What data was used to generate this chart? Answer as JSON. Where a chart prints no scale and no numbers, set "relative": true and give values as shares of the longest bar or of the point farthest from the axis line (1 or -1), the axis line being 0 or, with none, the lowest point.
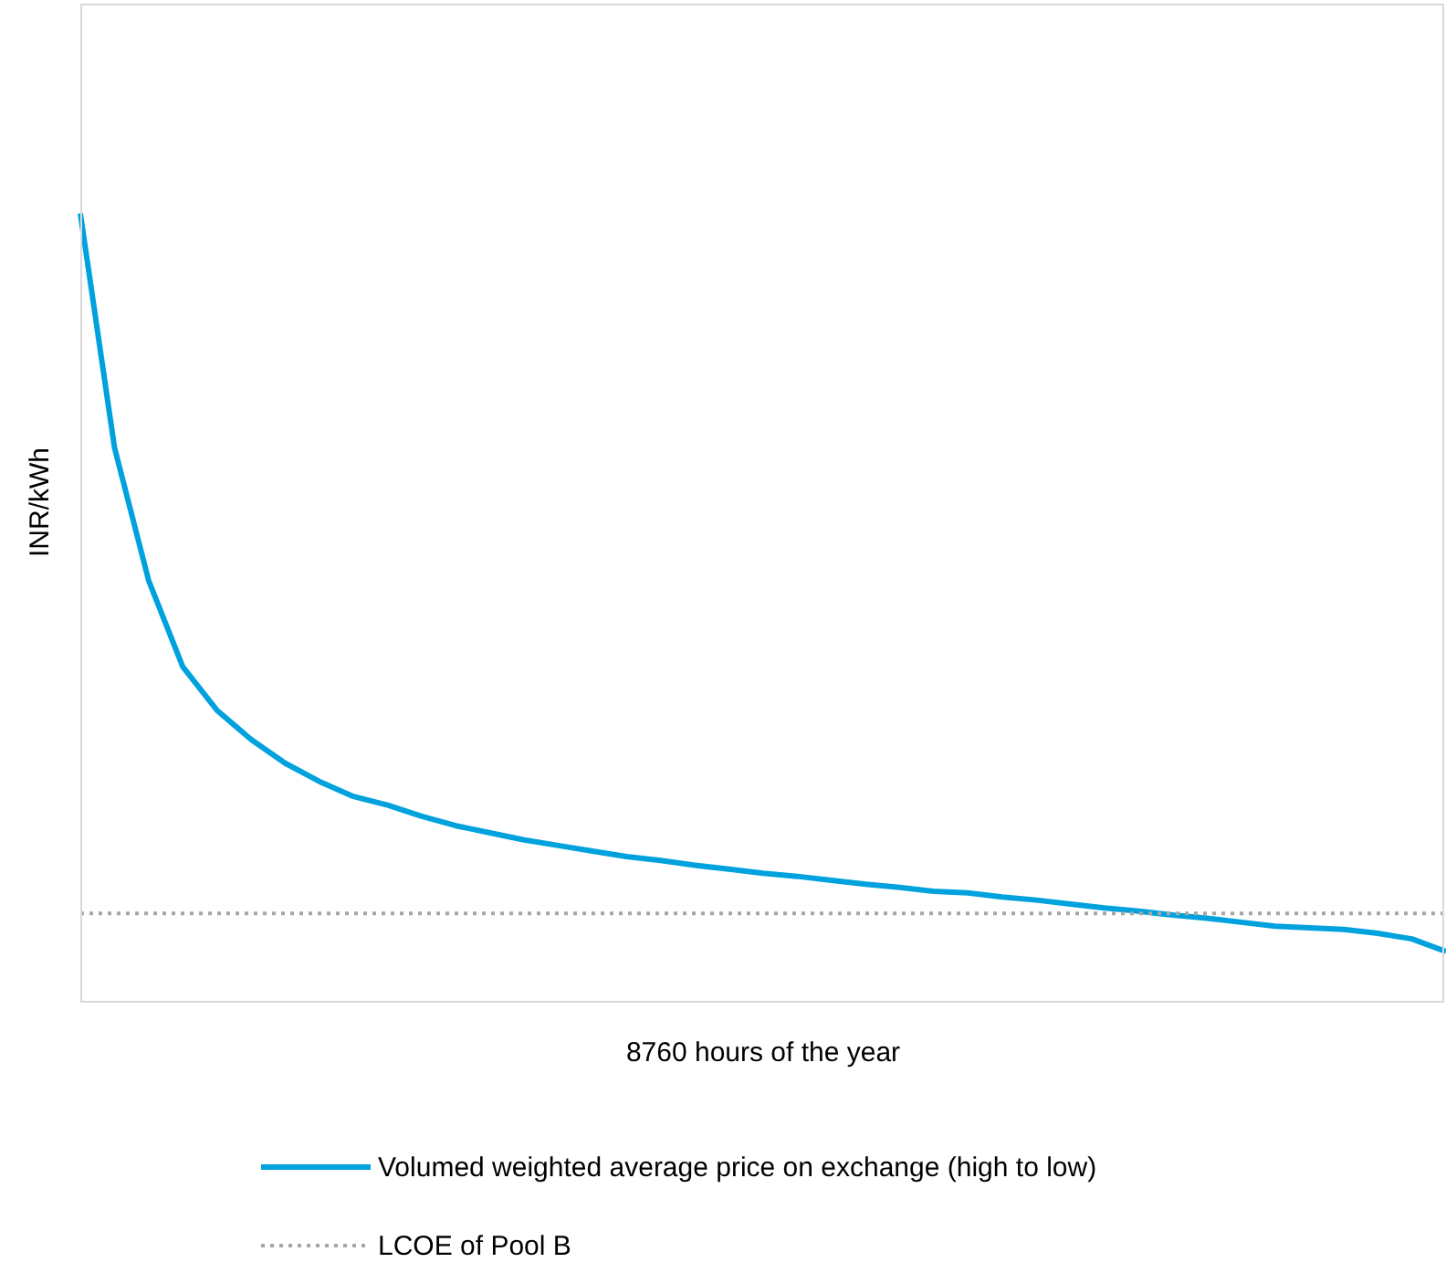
{
  "chart_data": {
    "type": "line",
    "relative": true,
    "xlabel": "8760 hours of the year",
    "ylabel": "INR/kWh",
    "legend": "bottom",
    "grid": false,
    "marker": "none",
    "categories": [
      null,
      null,
      null,
      null,
      null,
      null,
      null,
      null,
      null,
      null,
      null,
      null,
      null,
      null,
      null,
      null,
      null,
      null,
      null,
      null,
      null,
      null,
      null,
      null,
      null,
      null,
      null,
      null,
      null,
      null,
      null,
      null,
      null,
      null,
      null,
      null,
      null,
      null,
      null,
      null,
      null
    ],
    "series": [
      {
        "name": "Volumed weighted average price on exchange (high to low)",
        "color": "#00a2de",
        "line_style": "solid",
        "values": [
          1.0,
          0.704,
          0.536,
          0.427,
          0.372,
          0.335,
          0.305,
          0.282,
          0.263,
          0.252,
          0.238,
          0.226,
          0.217,
          0.208,
          0.201,
          0.194,
          0.187,
          0.182,
          0.176,
          0.171,
          0.166,
          0.162,
          0.157,
          0.152,
          0.148,
          0.143,
          0.141,
          0.136,
          0.132,
          0.127,
          0.122,
          0.118,
          0.113,
          0.109,
          0.104,
          0.099,
          0.097,
          0.095,
          0.09,
          0.083,
          0.067
        ]
      },
      {
        "name": "LCOE of Pool B",
        "color": "#a6a6a6",
        "line_style": "dotted",
        "values": [
          0.115,
          0.115,
          0.115,
          0.115,
          0.115,
          0.115,
          0.115,
          0.115,
          0.115,
          0.115,
          0.115,
          0.115,
          0.115,
          0.115,
          0.115,
          0.115,
          0.115,
          0.115,
          0.115,
          0.115,
          0.115,
          0.115,
          0.115,
          0.115,
          0.115,
          0.115,
          0.115,
          0.115,
          0.115,
          0.115,
          0.115,
          0.115,
          0.115,
          0.115,
          0.115,
          0.115,
          0.115,
          0.115,
          0.115,
          0.115,
          0.115
        ]
      }
    ]
  }
}
